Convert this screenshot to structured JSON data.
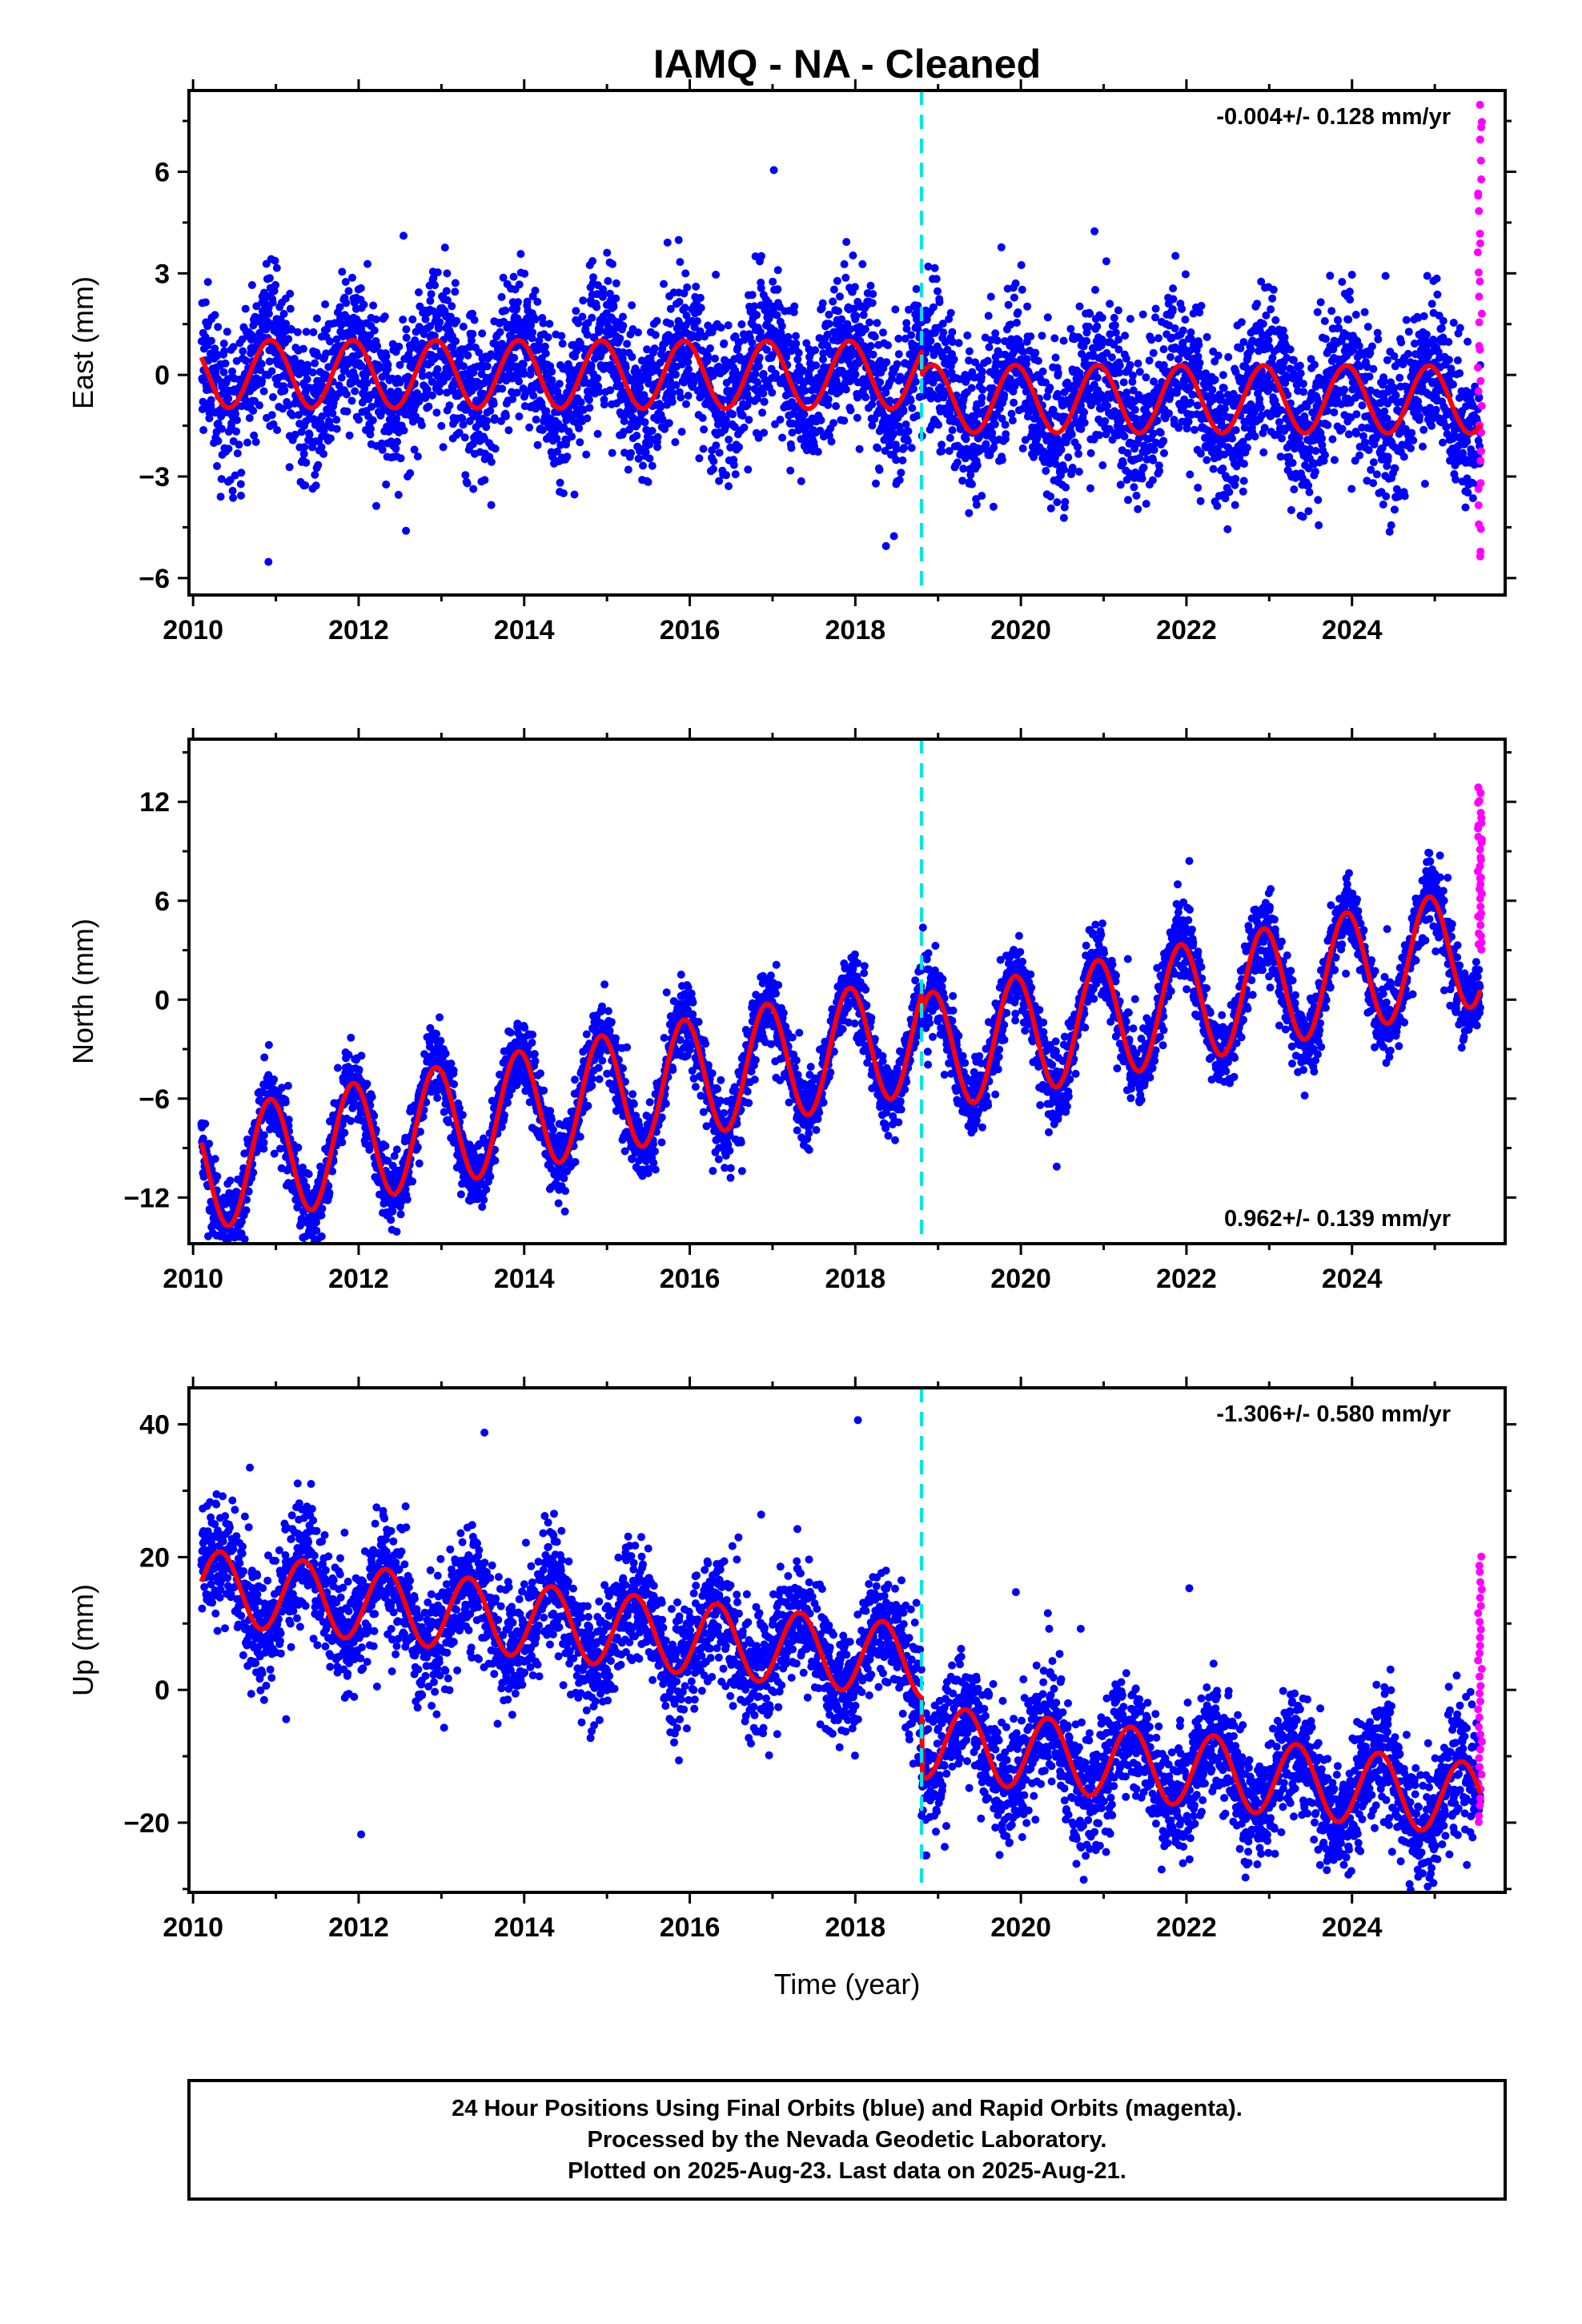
{
  "title": "IAMQ  - NA - Cleaned",
  "xlabel": "Time (year)",
  "xticks": [
    "2010",
    "2012",
    "2014",
    "2016",
    "2018",
    "2020",
    "2022",
    "2024"
  ],
  "footer": {
    "line1": "24 Hour Positions Using Final Orbits (blue) and Rapid Orbits (magenta).",
    "line2": "Processed by the Nevada Geodetic Laboratory.",
    "line3": "Plotted on 2025-Aug-23. Last data on 2025-Aug-21."
  },
  "colors": {
    "final_orbits": "#0000ff",
    "rapid_orbits": "#ff00ff",
    "model_fit": "#ff0000",
    "equipment_change": "#00e5e5"
  },
  "chart_data": [
    {
      "type": "scatter",
      "name": "east",
      "ylabel": "East (mm)",
      "xlim": [
        2009.95,
        2025.85
      ],
      "ylim": [
        -6.5,
        8.4
      ],
      "yticks": [
        -6,
        -3,
        0,
        3,
        6
      ],
      "rate_text": "-0.004+/- 0.128 mm/yr",
      "rate_position": "top-right",
      "vline_x": 2018.8,
      "x_start": 2010.1,
      "x_end": 2025.55,
      "rapid_start": 2025.52,
      "rapid_range": [
        -5.5,
        8.0
      ],
      "model": {
        "offset": 0.0,
        "rate": -0.004,
        "annual_amp": 1.0,
        "annual_phase": 2.0,
        "semiannual_amp": 0.0,
        "semiannual_phase": 0.0,
        "step_at": 2018.8,
        "step": -0.7
      },
      "scatter_sigma": 1.1,
      "grid": false
    },
    {
      "type": "scatter",
      "name": "north",
      "ylabel": "North (mm)",
      "xlim": [
        2009.95,
        2025.85
      ],
      "ylim": [
        -14.8,
        15.8
      ],
      "yticks": [
        -12,
        -6,
        0,
        6,
        12
      ],
      "rate_text": "0.962+/- 0.139 mm/yr",
      "rate_position": "bottom-right",
      "vline_x": 2018.8,
      "x_start": 2010.1,
      "x_end": 2025.55,
      "rapid_start": 2025.52,
      "rapid_range": [
        3.0,
        13.0
      ],
      "model": {
        "offset": -3.0,
        "rate": 0.962,
        "annual_amp": 3.6,
        "annual_phase": 2.0,
        "semiannual_amp": 0.0,
        "semiannual_phase": 0.0,
        "step_at": 2018.8,
        "step": -1.2
      },
      "scatter_sigma": 1.1,
      "grid": false
    },
    {
      "type": "scatter",
      "name": "up",
      "ylabel": "Up (mm)",
      "xlim": [
        2009.95,
        2025.85
      ],
      "ylim": [
        -30.5,
        45.5
      ],
      "yticks": [
        -20,
        0,
        20,
        40
      ],
      "rate_text": "-1.306+/- 0.580 mm/yr",
      "rate_position": "top-right",
      "vline_x": 2018.8,
      "x_start": 2010.1,
      "x_end": 2025.55,
      "rapid_start": 2025.52,
      "rapid_range": [
        -20.0,
        20.0
      ],
      "model": {
        "offset": 5.5,
        "rate": -1.306,
        "annual_amp": 5.5,
        "annual_phase": -0.5,
        "semiannual_amp": 0.0,
        "semiannual_phase": 0.0,
        "step_at": 2018.8,
        "step": -12.0
      },
      "scatter_sigma": 4.5,
      "grid": false
    }
  ]
}
